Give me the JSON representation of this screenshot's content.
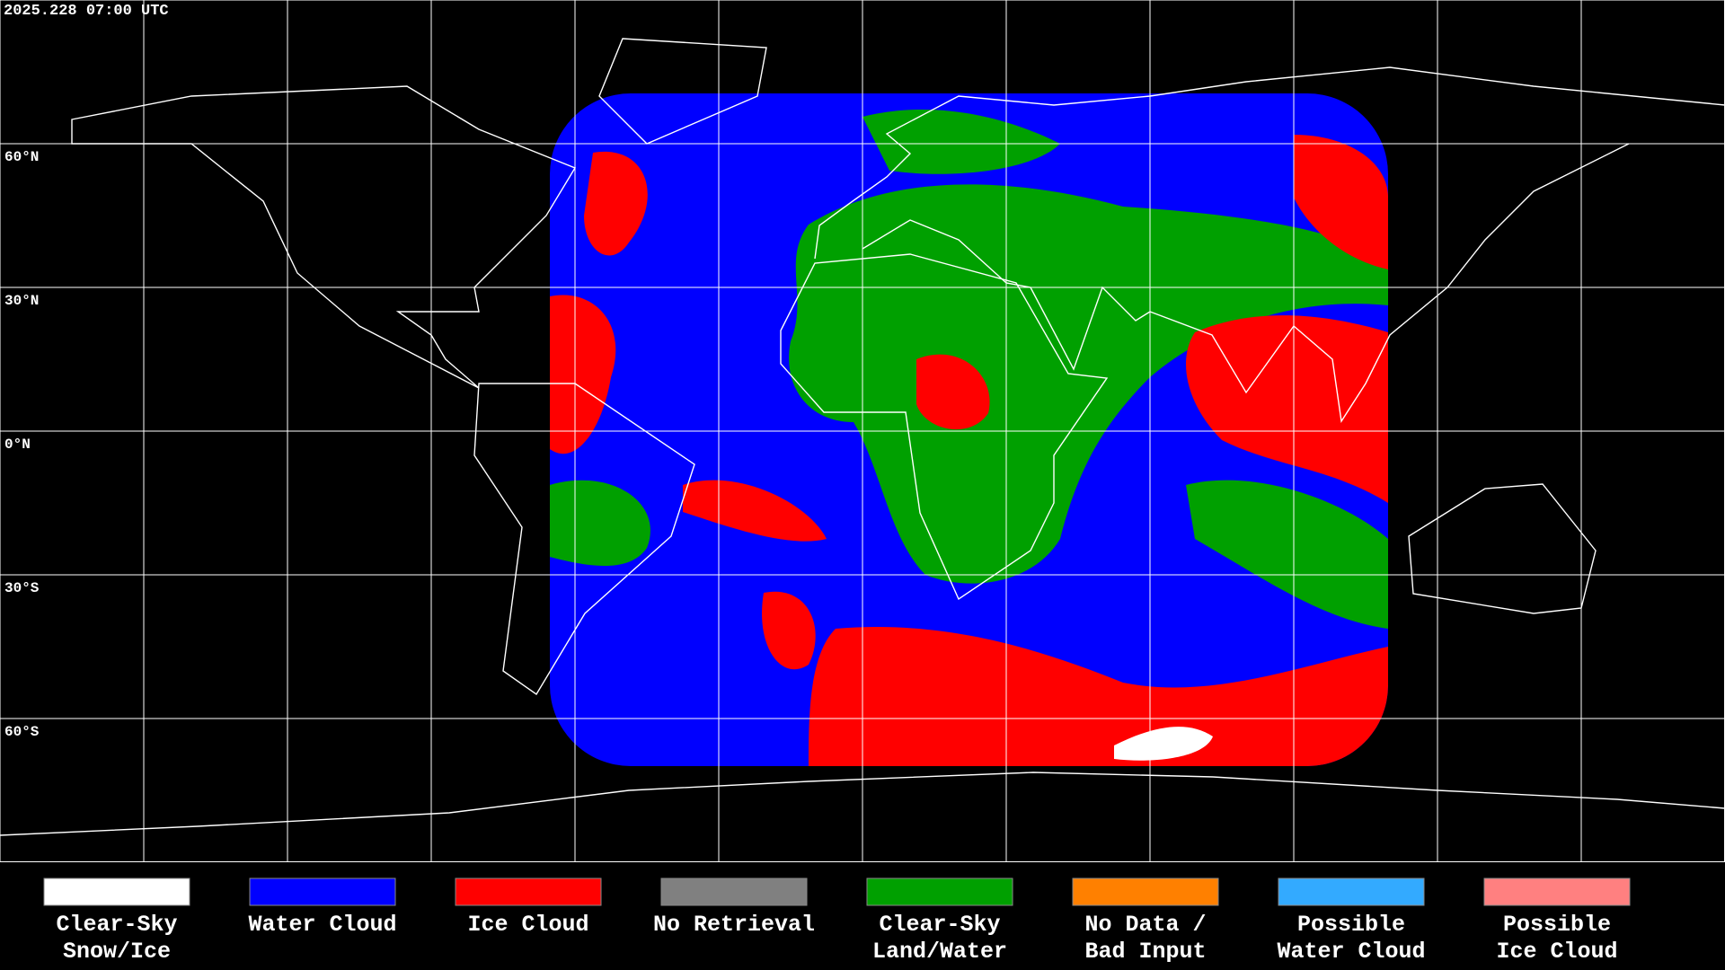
{
  "header": {
    "timestamp": "2025.228 07:00 UTC"
  },
  "map": {
    "latitude_labels": [
      "60°N",
      "30°N",
      "0°N",
      "30°S",
      "60°S"
    ]
  },
  "legend": {
    "items": [
      {
        "lines": [
          "Clear-Sky",
          "Snow/Ice"
        ],
        "color": "#ffffff"
      },
      {
        "lines": [
          "Water Cloud"
        ],
        "color": "#0000ff"
      },
      {
        "lines": [
          "Ice Cloud"
        ],
        "color": "#ff0000"
      },
      {
        "lines": [
          "No Retrieval"
        ],
        "color": "#808080"
      },
      {
        "lines": [
          "Clear-Sky",
          "Land/Water"
        ],
        "color": "#00a000"
      },
      {
        "lines": [
          "No Data /",
          "Bad Input"
        ],
        "color": "#ff8000"
      },
      {
        "lines": [
          "Possible",
          "Water Cloud"
        ],
        "color": "#33aaff"
      },
      {
        "lines": [
          "Possible",
          "Ice Cloud"
        ],
        "color": "#ff8080"
      }
    ]
  }
}
